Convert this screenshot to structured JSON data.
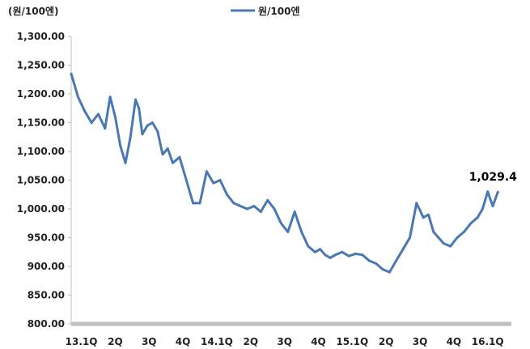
{
  "colors": {
    "series": "#4a78b4",
    "axis": "#bfbfbf",
    "text": "#222222"
  },
  "chart_data": {
    "type": "line",
    "unit_label": "(원/100엔)",
    "ylim": [
      800,
      1300
    ],
    "yticks": [
      "1,300.00",
      "1,250.00",
      "1,200.00",
      "1,150.00",
      "1,100.00",
      "1,050.00",
      "1,000.00",
      "950.00",
      "900.00",
      "850.00",
      "800.00"
    ],
    "ytick_values": [
      1300,
      1250,
      1200,
      1150,
      1100,
      1050,
      1000,
      950,
      900,
      850,
      800
    ],
    "xlim": [
      0,
      13
    ],
    "xticks": [
      "13.1Q",
      "2Q",
      "3Q",
      "4Q",
      "14.1Q",
      "2Q",
      "3Q",
      "4Q",
      "15.1Q",
      "2Q",
      "3Q",
      "4Q",
      "16.1Q"
    ],
    "xtick_positions": [
      0.3,
      1.3,
      2.3,
      3.3,
      4.3,
      5.3,
      6.3,
      7.3,
      8.3,
      9.3,
      10.3,
      11.3,
      12.3
    ],
    "grid": false,
    "legend": "top-center",
    "series": [
      {
        "name": "원/100엔",
        "x": [
          0.0,
          0.2,
          0.4,
          0.6,
          0.8,
          1.0,
          1.15,
          1.3,
          1.45,
          1.6,
          1.75,
          1.9,
          2.0,
          2.1,
          2.25,
          2.4,
          2.55,
          2.7,
          2.85,
          3.0,
          3.2,
          3.4,
          3.6,
          3.8,
          4.0,
          4.2,
          4.4,
          4.6,
          4.8,
          5.0,
          5.2,
          5.4,
          5.6,
          5.8,
          6.0,
          6.2,
          6.4,
          6.6,
          6.8,
          7.0,
          7.2,
          7.35,
          7.5,
          7.65,
          7.8,
          8.0,
          8.2,
          8.4,
          8.6,
          8.8,
          9.0,
          9.2,
          9.4,
          9.6,
          9.8,
          10.0,
          10.2,
          10.4,
          10.55,
          10.7,
          10.85,
          11.0,
          11.2,
          11.4,
          11.6,
          11.8,
          12.0,
          12.15,
          12.3,
          12.45,
          12.6
        ],
        "values": [
          1235,
          1195,
          1170,
          1150,
          1165,
          1140,
          1195,
          1160,
          1110,
          1080,
          1125,
          1190,
          1175,
          1130,
          1145,
          1150,
          1135,
          1095,
          1105,
          1080,
          1090,
          1050,
          1010,
          1010,
          1065,
          1045,
          1050,
          1025,
          1010,
          1005,
          1000,
          1005,
          995,
          1015,
          1000,
          975,
          960,
          995,
          960,
          935,
          925,
          930,
          920,
          915,
          920,
          925,
          918,
          922,
          920,
          910,
          905,
          895,
          890,
          910,
          930,
          950,
          1010,
          985,
          990,
          960,
          950,
          940,
          935,
          950,
          960,
          975,
          985,
          1000,
          1030,
          1005,
          1029.4
        ]
      }
    ],
    "annotations": [
      {
        "text": "1,029.4",
        "x": 12.6,
        "y": 1029.4
      }
    ]
  }
}
